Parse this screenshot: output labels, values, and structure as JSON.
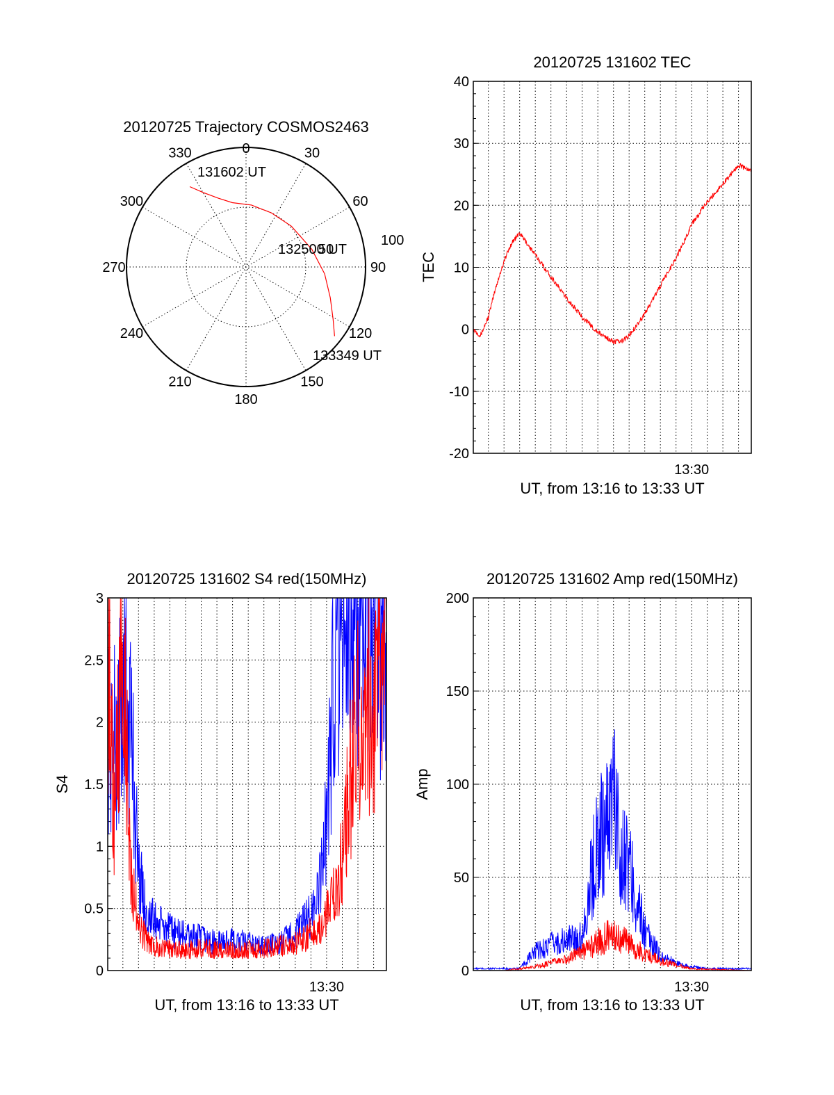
{
  "colors": {
    "red": "#ff0000",
    "blue": "#0000ff",
    "axis": "#000000"
  },
  "chart_data": [
    {
      "type": "polar",
      "title": "20120725 Trajectory COSMOS2463",
      "angle_labels": [
        "0",
        "30",
        "60",
        "90",
        "120",
        "150",
        "180",
        "210",
        "240",
        "270",
        "300",
        "330"
      ],
      "radius_labels": [
        "50",
        "100"
      ],
      "rmax": 100,
      "series": [
        {
          "color": "red",
          "points": [
            {
              "az": 325,
              "r": 82
            },
            {
              "az": 330,
              "r": 72
            },
            {
              "az": 338,
              "r": 62
            },
            {
              "az": 348,
              "r": 55
            },
            {
              "az": 5,
              "r": 52
            },
            {
              "az": 25,
              "r": 50
            },
            {
              "az": 48,
              "r": 51
            },
            {
              "az": 75,
              "r": 57
            },
            {
              "az": 95,
              "r": 66
            },
            {
              "az": 110,
              "r": 75
            },
            {
              "az": 121,
              "r": 85
            },
            {
              "az": 128,
              "r": 94
            }
          ]
        }
      ],
      "annotations": [
        {
          "text": "131602 UT",
          "az": 325,
          "r": 82
        },
        {
          "text": "132500 UT",
          "az": 48,
          "r": 51
        },
        {
          "text": "133349 UT",
          "az": 128,
          "r": 94
        }
      ]
    },
    {
      "type": "line",
      "title": "20120725 131602 TEC",
      "ylabel": "TEC",
      "xlabel": "UT, from 13:16 to 13:33 UT",
      "xrange": [
        "13:16:02",
        "13:33:49"
      ],
      "xtick_labels": [
        {
          "t": "13:30:00",
          "label": "13:30"
        }
      ],
      "yrange": [
        -20,
        40
      ],
      "yticks": [
        "-20",
        "-10",
        "0",
        "10",
        "20",
        "30",
        "40"
      ],
      "grid": true,
      "series": [
        {
          "color": "red",
          "x": [
            "13:16:02",
            "13:16:30",
            "13:17:00",
            "13:17:30",
            "13:18:00",
            "13:18:30",
            "13:19:00",
            "13:20:00",
            "13:21:00",
            "13:22:00",
            "13:23:00",
            "13:24:00",
            "13:25:00",
            "13:25:30",
            "13:26:00",
            "13:27:00",
            "13:28:00",
            "13:29:00",
            "13:29:30",
            "13:30:00",
            "13:31:00",
            "13:32:00",
            "13:33:00",
            "13:33:49"
          ],
          "y": [
            0,
            -1,
            2,
            7,
            11,
            14,
            15.5,
            12,
            8.5,
            5,
            2,
            -0.5,
            -2,
            -2,
            -1,
            2.5,
            7,
            11.5,
            14,
            17,
            20.5,
            23.5,
            26.5,
            25.5
          ]
        }
      ]
    },
    {
      "type": "line",
      "title": "20120725 131602 S4 red(150MHz)",
      "ylabel": "S4",
      "xlabel": "UT, from 13:16 to 13:33 UT",
      "xrange": [
        "13:16:02",
        "13:33:49"
      ],
      "xtick_labels": [
        {
          "t": "13:30:00",
          "label": "13:30"
        }
      ],
      "yrange": [
        0,
        3
      ],
      "yticks": [
        "0",
        "0.5",
        "1",
        "1.5",
        "2",
        "2.5",
        "3"
      ],
      "grid": true,
      "series": [
        {
          "color": "blue",
          "x": [
            "13:16:02",
            "13:16:30",
            "13:17:00",
            "13:17:30",
            "13:18:00",
            "13:18:30",
            "13:19:00",
            "13:20:00",
            "13:21:00",
            "13:22:00",
            "13:23:00",
            "13:24:00",
            "13:25:00",
            "13:26:00",
            "13:27:00",
            "13:28:00",
            "13:29:00",
            "13:29:30",
            "13:30:00",
            "13:30:30",
            "13:31:00",
            "13:31:30",
            "13:32:00",
            "13:33:00",
            "13:33:49"
          ],
          "y": [
            2.0,
            1.8,
            2.2,
            2.0,
            0.8,
            0.45,
            0.4,
            0.32,
            0.28,
            0.26,
            0.22,
            0.24,
            0.22,
            0.2,
            0.22,
            0.3,
            0.45,
            0.6,
            1.2,
            2.5,
            3.0,
            3.0,
            2.6,
            2.8,
            2.5
          ]
        },
        {
          "color": "red",
          "x": [
            "13:16:02",
            "13:16:30",
            "13:17:00",
            "13:17:30",
            "13:18:00",
            "13:18:30",
            "13:19:00",
            "13:20:00",
            "13:21:00",
            "13:22:00",
            "13:23:00",
            "13:24:00",
            "13:25:00",
            "13:26:00",
            "13:27:00",
            "13:28:00",
            "13:29:00",
            "13:29:30",
            "13:30:00",
            "13:30:30",
            "13:31:00",
            "13:31:30",
            "13:32:00",
            "13:33:00",
            "13:33:49"
          ],
          "y": [
            2.5,
            1.2,
            2.8,
            0.8,
            0.35,
            0.25,
            0.2,
            0.17,
            0.16,
            0.18,
            0.17,
            0.16,
            0.17,
            0.18,
            0.2,
            0.22,
            0.3,
            0.35,
            0.45,
            0.6,
            0.9,
            1.5,
            2.0,
            2.2,
            2.4
          ]
        }
      ]
    },
    {
      "type": "line",
      "title": "20120725 131602 Amp red(150MHz)",
      "ylabel": "Amp",
      "xlabel": "UT, from 13:16 to 13:33 UT",
      "xrange": [
        "13:16:02",
        "13:33:49"
      ],
      "xtick_labels": [
        {
          "t": "13:30:00",
          "label": "13:30"
        }
      ],
      "yrange": [
        0,
        200
      ],
      "yticks": [
        "0",
        "50",
        "100",
        "150",
        "200"
      ],
      "grid": true,
      "series": [
        {
          "color": "blue",
          "x": [
            "13:16:02",
            "13:17:00",
            "13:18:00",
            "13:19:00",
            "13:20:00",
            "13:21:00",
            "13:22:00",
            "13:23:00",
            "13:23:30",
            "13:24:00",
            "13:24:30",
            "13:25:00",
            "13:25:15",
            "13:25:30",
            "13:26:00",
            "13:26:30",
            "13:27:00",
            "13:28:00",
            "13:29:00",
            "13:30:00",
            "13:31:00",
            "13:32:00",
            "13:33:49"
          ],
          "y": [
            1,
            1,
            1,
            1,
            10,
            14,
            16,
            18,
            45,
            70,
            75,
            98,
            80,
            65,
            55,
            38,
            20,
            8,
            4,
            2,
            1,
            1,
            1
          ]
        },
        {
          "color": "red",
          "x": [
            "13:16:02",
            "13:18:00",
            "13:20:00",
            "13:22:00",
            "13:23:00",
            "13:24:00",
            "13:25:00",
            "13:26:00",
            "13:27:00",
            "13:28:00",
            "13:29:00",
            "13:30:00",
            "13:33:49"
          ],
          "y": [
            0,
            0,
            2,
            6,
            10,
            15,
            20,
            14,
            9,
            5,
            3,
            1,
            0
          ]
        }
      ]
    }
  ]
}
